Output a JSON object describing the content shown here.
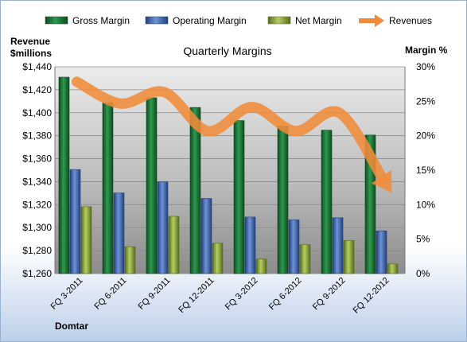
{
  "chart_data": {
    "type": "bar",
    "title": "Quarterly Margins",
    "company": "Domtar",
    "left_axis_label": [
      "Revenue",
      "$millions"
    ],
    "right_axis_label": "Margin %",
    "categories": [
      "FQ 3-2011",
      "FQ 6-2011",
      "FQ 9-2011",
      "FQ 12-2011",
      "FQ 3-2012",
      "FQ 6-2012",
      "FQ 9-2012",
      "FQ 12-2012"
    ],
    "left_axis": {
      "min": 1260,
      "max": 1440,
      "step": 20,
      "ticks": [
        "$1,260",
        "$1,280",
        "$1,300",
        "$1,320",
        "$1,340",
        "$1,360",
        "$1,380",
        "$1,400",
        "$1,420",
        "$1,440"
      ]
    },
    "right_axis": {
      "min": 0,
      "max": 30,
      "step": 5,
      "ticks": [
        "0%",
        "5%",
        "10%",
        "15%",
        "20%",
        "25%",
        "30%"
      ]
    },
    "series": [
      {
        "name": "Gross Margin",
        "axis": "right",
        "color": "#1e7a3a",
        "values": [
          28.5,
          24.8,
          25.5,
          24.1,
          22.2,
          21.4,
          20.8,
          20.1
        ]
      },
      {
        "name": "Operating Margin",
        "axis": "right",
        "color": "#4066b0",
        "values": [
          15.1,
          11.7,
          13.3,
          10.9,
          8.2,
          7.8,
          8.1,
          6.2
        ]
      },
      {
        "name": "Net Margin",
        "axis": "right",
        "color": "#8aa83c",
        "values": [
          9.7,
          3.9,
          8.3,
          4.4,
          2.1,
          4.2,
          4.8,
          1.4
        ]
      },
      {
        "name": "Revenues",
        "axis": "left",
        "color": "#f08b3a",
        "values": [
          1427,
          1408,
          1418,
          1384,
          1405,
          1384,
          1400,
          1342
        ],
        "style": "smooth-line-arrow"
      }
    ],
    "legend_position": "top",
    "grid": true
  }
}
